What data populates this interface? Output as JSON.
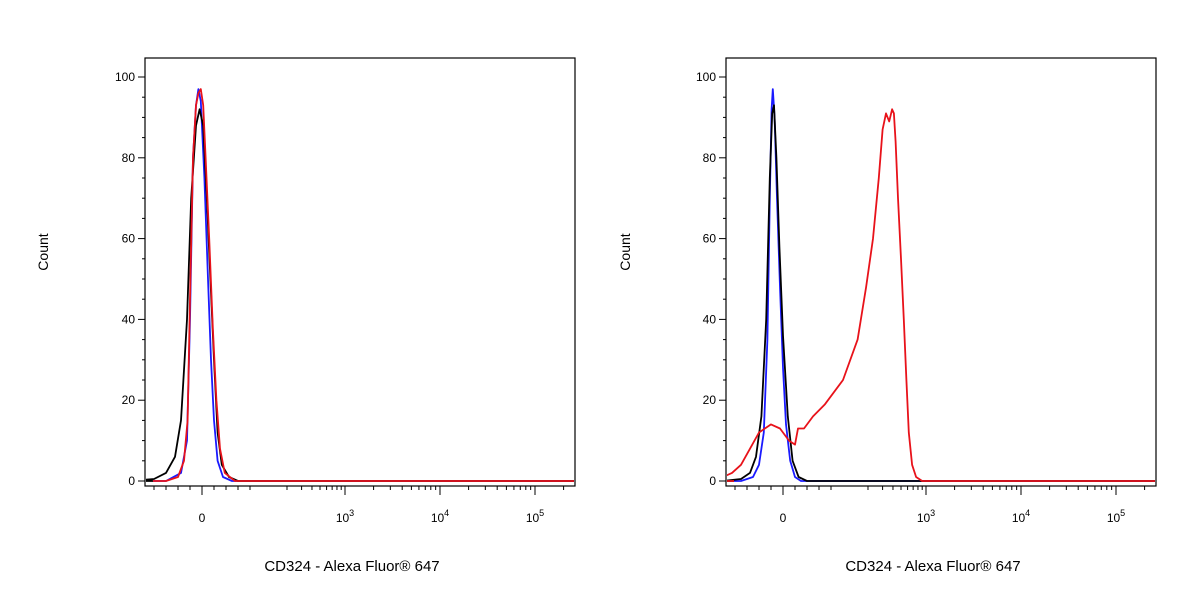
{
  "chart_data": [
    {
      "type": "line",
      "title": "",
      "xlabel": "CD324 - Alexa Fluor® 647",
      "ylabel": "Count",
      "x_scale": "biexponential",
      "x_ticks": [
        {
          "value": 0,
          "base": "0",
          "exp": ""
        },
        {
          "value": 1000,
          "base": "10",
          "exp": "3"
        },
        {
          "value": 10000,
          "base": "10",
          "exp": "4"
        },
        {
          "value": 100000,
          "base": "10",
          "exp": "5"
        }
      ],
      "y_ticks": [
        "0",
        "20",
        "40",
        "60",
        "80",
        "100"
      ],
      "ylim": [
        0,
        100
      ],
      "grid": false,
      "series": [
        {
          "color": "#1a1aff",
          "points": [
            [
              -60,
              0
            ],
            [
              -35,
              2
            ],
            [
              -25,
              10
            ],
            [
              -20,
              40
            ],
            [
              -15,
              80
            ],
            [
              -10,
              93
            ],
            [
              -6,
              97
            ],
            [
              -2,
              94
            ],
            [
              4,
              75
            ],
            [
              10,
              50
            ],
            [
              15,
              30
            ],
            [
              20,
              15
            ],
            [
              26,
              5
            ],
            [
              35,
              1
            ],
            [
              50,
              0
            ]
          ]
        },
        {
          "color": "#000000",
          "points": [
            [
              -120,
              0
            ],
            [
              -80,
              0.5
            ],
            [
              -60,
              2
            ],
            [
              -45,
              6
            ],
            [
              -35,
              15
            ],
            [
              -25,
              40
            ],
            [
              -18,
              70
            ],
            [
              -10,
              88
            ],
            [
              -4,
              92
            ],
            [
              2,
              88
            ],
            [
              8,
              70
            ],
            [
              14,
              50
            ],
            [
              20,
              30
            ],
            [
              26,
              12
            ],
            [
              33,
              4
            ],
            [
              45,
              1
            ],
            [
              60,
              0
            ]
          ]
        },
        {
          "color": "#e8121a",
          "points": [
            [
              -60,
              0
            ],
            [
              -40,
              1
            ],
            [
              -30,
              5
            ],
            [
              -24,
              15
            ],
            [
              -20,
              45
            ],
            [
              -15,
              80
            ],
            [
              -10,
              93
            ],
            [
              -6,
              96
            ],
            [
              -2,
              97
            ],
            [
              2,
              93
            ],
            [
              6,
              80
            ],
            [
              12,
              60
            ],
            [
              18,
              38
            ],
            [
              24,
              20
            ],
            [
              30,
              8
            ],
            [
              38,
              2
            ],
            [
              55,
              0
            ]
          ]
        }
      ]
    },
    {
      "type": "line",
      "title": "",
      "xlabel": "CD324 - Alexa Fluor® 647",
      "ylabel": "Count",
      "x_scale": "biexponential",
      "x_ticks": [
        {
          "value": 0,
          "base": "0",
          "exp": ""
        },
        {
          "value": 1000,
          "base": "10",
          "exp": "3"
        },
        {
          "value": 10000,
          "base": "10",
          "exp": "4"
        },
        {
          "value": 100000,
          "base": "10",
          "exp": "5"
        }
      ],
      "y_ticks": [
        "0",
        "20",
        "40",
        "60",
        "80",
        "100"
      ],
      "ylim": [
        0,
        100
      ],
      "grid": false,
      "series": [
        {
          "color": "#1a1aff",
          "points": [
            [
              -70,
              0
            ],
            [
              -50,
              1
            ],
            [
              -40,
              4
            ],
            [
              -32,
              12
            ],
            [
              -26,
              35
            ],
            [
              -22,
              70
            ],
            [
              -19,
              92
            ],
            [
              -17,
              97
            ],
            [
              -14,
              90
            ],
            [
              -10,
              70
            ],
            [
              -5,
              48
            ],
            [
              0,
              28
            ],
            [
              5,
              14
            ],
            [
              12,
              5
            ],
            [
              20,
              1
            ],
            [
              30,
              0
            ]
          ]
        },
        {
          "color": "#000000",
          "points": [
            [
              -100,
              0
            ],
            [
              -70,
              0.5
            ],
            [
              -55,
              2
            ],
            [
              -45,
              6
            ],
            [
              -36,
              16
            ],
            [
              -28,
              40
            ],
            [
              -22,
              75
            ],
            [
              -18,
              91
            ],
            [
              -15,
              93
            ],
            [
              -11,
              80
            ],
            [
              -6,
              58
            ],
            [
              0,
              36
            ],
            [
              8,
              16
            ],
            [
              16,
              5
            ],
            [
              26,
              1
            ],
            [
              40,
              0
            ]
          ]
        },
        {
          "color": "#e8121a",
          "points": [
            [
              -120,
              0
            ],
            [
              -100,
              1
            ],
            [
              -85,
              2
            ],
            [
              -70,
              4
            ],
            [
              -55,
              8
            ],
            [
              -40,
              12
            ],
            [
              -20,
              14
            ],
            [
              -5,
              13
            ],
            [
              10,
              10
            ],
            [
              20,
              9
            ],
            [
              25,
              13
            ],
            [
              35,
              13
            ],
            [
              50,
              16
            ],
            [
              70,
              19
            ],
            [
              100,
              25
            ],
            [
              150,
              35
            ],
            [
              190,
              48
            ],
            [
              230,
              60
            ],
            [
              270,
              75
            ],
            [
              300,
              87
            ],
            [
              330,
              91
            ],
            [
              360,
              89
            ],
            [
              390,
              92
            ],
            [
              410,
              91
            ],
            [
              430,
              84
            ],
            [
              460,
              70
            ],
            [
              500,
              55
            ],
            [
              540,
              40
            ],
            [
              580,
              25
            ],
            [
              620,
              12
            ],
            [
              680,
              4
            ],
            [
              760,
              1
            ],
            [
              900,
              0
            ]
          ]
        }
      ]
    }
  ]
}
